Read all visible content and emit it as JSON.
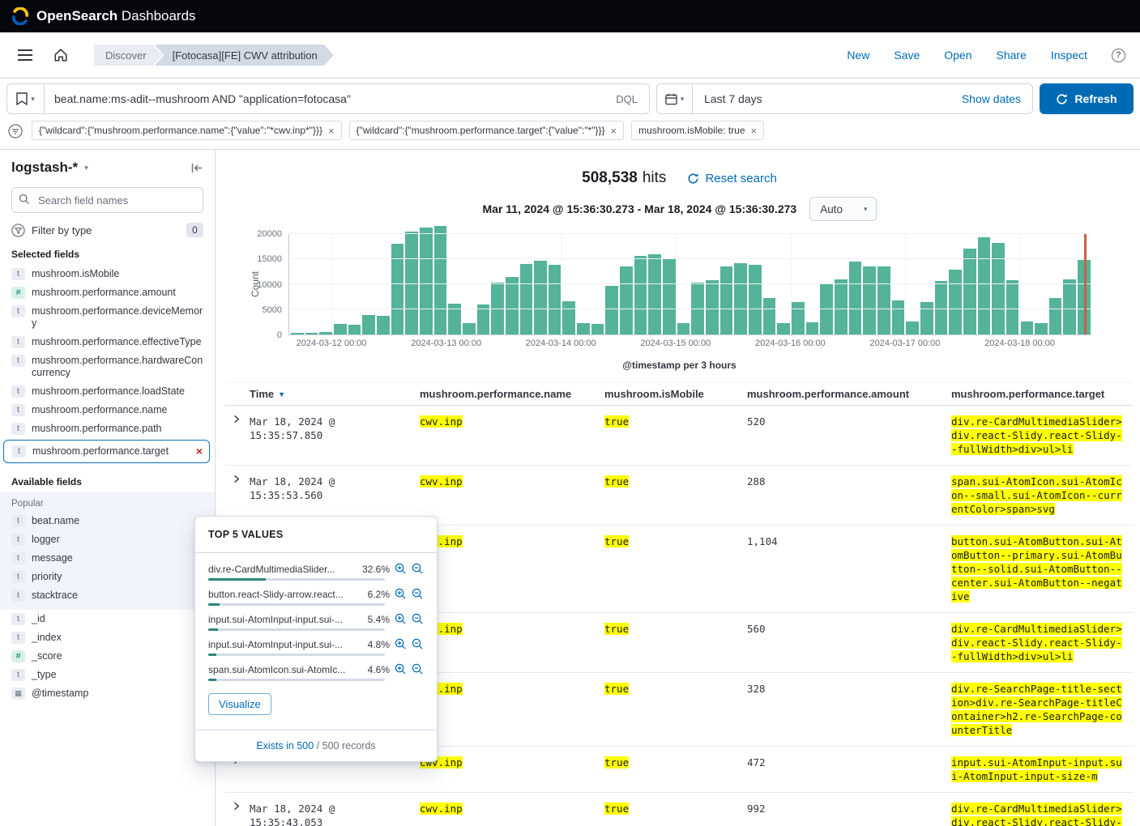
{
  "topbar": {
    "brand_open": "Open",
    "brand_search": "Search",
    "brand_rest": " Dashboards"
  },
  "nav": {
    "breadcrumbs": [
      "Discover",
      "[Fotocasa][FE] CWV attribution"
    ],
    "actions": [
      "New",
      "Save",
      "Open",
      "Share",
      "Inspect"
    ],
    "help": "?"
  },
  "query_bar": {
    "query": "beat.name:ms-adit--mushroom AND  \"application=fotocasa\"",
    "language": "DQL",
    "time_range": "Last 7 days",
    "show_dates": "Show dates",
    "refresh_label": "Refresh"
  },
  "filters": [
    "{\"wildcard\":{\"mushroom.performance.name\":{\"value\":\"*cwv.inp*\"}}}",
    "{\"wildcard\":{\"mushroom.performance.target\":{\"value\":\"*\"}}}",
    "mushroom.isMobile: true"
  ],
  "sidebar": {
    "index_pattern": "logstash-*",
    "search_placeholder": "Search field names",
    "filter_by_type_label": "Filter by type",
    "filter_count": "0",
    "selected_heading": "Selected fields",
    "selected_fields": [
      {
        "type": "t",
        "name": "mushroom.isMobile"
      },
      {
        "type": "#",
        "name": "mushroom.performance.amount"
      },
      {
        "type": "t",
        "name": "mushroom.performance.deviceMemory"
      },
      {
        "type": "t",
        "name": "mushroom.performance.effectiveType"
      },
      {
        "type": "t",
        "name": "mushroom.performance.hardwareConcurrency"
      },
      {
        "type": "t",
        "name": "mushroom.performance.loadState"
      },
      {
        "type": "t",
        "name": "mushroom.performance.name"
      },
      {
        "type": "t",
        "name": "mushroom.performance.path"
      },
      {
        "type": "t",
        "name": "mushroom.performance.target",
        "selected": true
      }
    ],
    "available_heading": "Available fields",
    "popular_label": "Popular",
    "popular_fields": [
      {
        "type": "t",
        "name": "beat.name"
      },
      {
        "type": "t",
        "name": "logger"
      },
      {
        "type": "t",
        "name": "message"
      },
      {
        "type": "t",
        "name": "priority"
      },
      {
        "type": "t",
        "name": "stacktrace"
      }
    ],
    "other_fields": [
      {
        "type": "t",
        "name": "_id"
      },
      {
        "type": "t",
        "name": "_index"
      },
      {
        "type": "#",
        "name": "_score"
      },
      {
        "type": "t",
        "name": "_type"
      },
      {
        "type": "date",
        "name": "@timestamp"
      }
    ]
  },
  "popup": {
    "title": "TOP 5 VALUES",
    "values": [
      {
        "label": "div.re-CardMultimediaSlider...",
        "pct": "32.6%",
        "fill": 32.6
      },
      {
        "label": "button.react-Slidy-arrow.react...",
        "pct": "6.2%",
        "fill": 6.2
      },
      {
        "label": "input.sui-AtomInput-input.sui-...",
        "pct": "5.4%",
        "fill": 5.4
      },
      {
        "label": "input.sui-AtomInput-input.sui-...",
        "pct": "4.8%",
        "fill": 4.8
      },
      {
        "label": "span.sui-AtomIcon.sui-AtomIc...",
        "pct": "4.6%",
        "fill": 4.6
      }
    ],
    "visualize_label": "Visualize",
    "exists_link": "Exists in 500",
    "records_suffix": " / 500 records"
  },
  "results": {
    "hits_count": "508,538",
    "hits_word": "hits",
    "reset_label": "Reset search",
    "range": "Mar 11, 2024 @ 15:36:30.273 - Mar 18, 2024 @ 15:36:30.273",
    "interval": "Auto"
  },
  "chart_data": {
    "type": "bar",
    "title": "",
    "xlabel": "@timestamp per 3 hours",
    "ylabel": "Count",
    "ylim": [
      0,
      20000
    ],
    "yticks": [
      0,
      5000,
      10000,
      15000,
      20000
    ],
    "x_tick_labels": [
      "2024-03-12 00:00",
      "2024-03-13 00:00",
      "2024-03-14 00:00",
      "2024-03-15 00:00",
      "2024-03-16 00:00",
      "2024-03-17 00:00",
      "2024-03-18 00:00"
    ],
    "bar_interval": "3h",
    "bar_color": "#54b399",
    "now_marker_color": "#c86145",
    "values": [
      300,
      250,
      400,
      2000,
      1800,
      3700,
      3500,
      17300,
      19600,
      20300,
      20600,
      5800,
      2100,
      5700,
      9900,
      10900,
      13400,
      14000,
      13300,
      6300,
      2200,
      2000,
      9200,
      13000,
      14900,
      15300,
      14400,
      2100,
      9800,
      10300,
      12900,
      13600,
      13300,
      6900,
      2200,
      6200,
      2300,
      9600,
      10400,
      13900,
      13000,
      12900,
      6500,
      2400,
      6100,
      10200,
      12300,
      16300,
      18400,
      17400,
      10300,
      2400,
      2200,
      6900,
      10500,
      14100
    ]
  },
  "table": {
    "columns": [
      "Time",
      "mushroom.performance.name",
      "mushroom.isMobile",
      "mushroom.performance.amount",
      "mushroom.performance.target"
    ],
    "rows": [
      {
        "time": "Mar 18, 2024 @ 15:35:57.850",
        "name": "cwv.inp",
        "mobile": "true",
        "amount": "520",
        "target": "div.re-CardMultimediaSlider>div.react-Slidy.react-Slidy--fullWidth>div>ul>li"
      },
      {
        "time": "Mar 18, 2024 @ 15:35:53.560",
        "name": "cwv.inp",
        "mobile": "true",
        "amount": "288",
        "target": "span.sui-AtomIcon.sui-AtomIcon--small.sui-AtomIcon--currentColor>span>svg"
      },
      {
        "time": "",
        "name": "cwv.inp",
        "mobile": "true",
        "amount": "1,104",
        "target": "button.sui-AtomButton.sui-AtomButton--primary.sui-AtomButton--solid.sui-AtomButton--center.sui-AtomButton--negative"
      },
      {
        "time": "",
        "name": "cwv.inp",
        "mobile": "true",
        "amount": "560",
        "target": "div.re-CardMultimediaSlider>div.react-Slidy.react-Slidy--fullWidth>div>ul>li"
      },
      {
        "time": "",
        "name": "cwv.inp",
        "mobile": "true",
        "amount": "328",
        "target": "div.re-SearchPage-title-section>div.re-SearchPage-titleContainer>h2.re-SearchPage-counterTitle"
      },
      {
        "time": "",
        "name": "cwv.inp",
        "mobile": "true",
        "amount": "472",
        "target": "input.sui-AtomInput-input.sui-AtomInput-input-size-m"
      },
      {
        "time": "Mar 18, 2024 @ 15:35:43.053",
        "name": "cwv.inp",
        "mobile": "true",
        "amount": "992",
        "target": "div.re-CardMultimediaSlider>div.react-Slidy.react-Slidy--fullWidth>div>ul>li"
      }
    ]
  }
}
